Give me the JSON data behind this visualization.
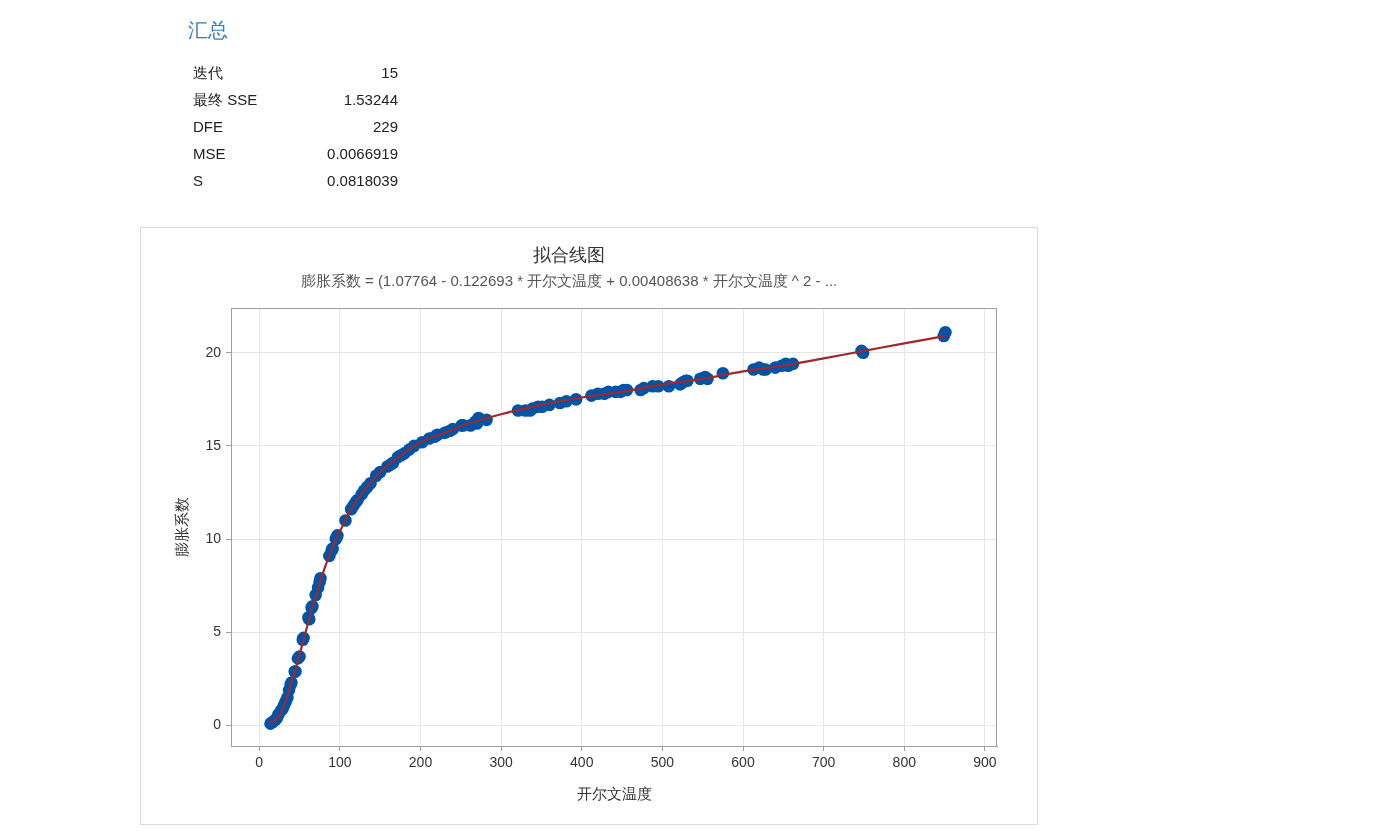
{
  "chart_data": [
    {
      "type": "other",
      "title": "汇总",
      "categories": [
        "迭代",
        "最终 SSE",
        "DFE",
        "MSE",
        "S"
      ],
      "values": [
        15,
        1.53244,
        229,
        0.0066919,
        0.0818039
      ],
      "data_labels": true
    },
    {
      "type": "scatter",
      "title": "拟合线图",
      "subtitle": "膨胀系数 = (1.07764 - 0.122693 * 开尔文温度 + 0.00408638 * 开尔文温度 ^ 2 - ...",
      "xlabel": "开尔文温度",
      "ylabel": "膨胀系数",
      "xlim": [
        -35,
        915
      ],
      "xticks": [
        0,
        100,
        200,
        300,
        400,
        500,
        600,
        700,
        800,
        900
      ],
      "ylim": [
        -1.1,
        22.4
      ],
      "yticks": [
        0,
        5,
        10,
        15,
        20
      ],
      "grid": true,
      "series": [
        {
          "type": "scatter",
          "color": "#0054a6",
          "marker": "circle",
          "x": [
            14,
            17,
            20,
            22,
            24,
            27,
            29,
            31,
            33,
            35,
            37,
            39,
            40,
            44,
            45,
            48,
            50,
            54,
            55,
            61,
            62,
            65,
            66,
            70,
            73,
            75,
            76,
            87,
            90,
            91,
            95,
            96,
            97,
            107,
            114,
            117,
            120,
            122,
            127,
            130,
            134,
            138,
            145,
            150,
            159,
            163,
            166,
            172,
            176,
            180,
            186,
            192,
            202,
            211,
            218,
            221,
            230,
            236,
            240,
            251,
            253,
            262,
            268,
            270,
            272,
            282,
            321,
            330,
            336,
            339,
            346,
            351,
            360,
            373,
            381,
            393,
            412,
            420,
            428,
            433,
            442,
            448,
            452,
            456,
            473,
            477,
            488,
            495,
            508,
            522,
            525,
            529,
            531,
            547,
            553,
            556,
            575,
            613,
            620,
            625,
            628,
            640,
            648,
            653,
            656,
            662,
            747,
            749,
            849,
            851
          ],
          "values": [
            0.1,
            0.2,
            0.3,
            0.4,
            0.6,
            0.8,
            0.9,
            1.1,
            1.3,
            1.5,
            1.9,
            2.2,
            2.3,
            2.9,
            2.9,
            3.6,
            3.7,
            4.6,
            4.7,
            5.8,
            5.7,
            6.3,
            6.4,
            7.0,
            7.4,
            7.7,
            7.9,
            9.1,
            9.4,
            9.5,
            10.0,
            10.1,
            10.2,
            11.0,
            11.6,
            11.8,
            12.0,
            12.1,
            12.4,
            12.6,
            12.8,
            13.0,
            13.4,
            13.6,
            13.9,
            14.0,
            14.1,
            14.4,
            14.5,
            14.6,
            14.8,
            15.0,
            15.2,
            15.4,
            15.5,
            15.6,
            15.7,
            15.8,
            15.9,
            16.1,
            16.1,
            16.1,
            16.3,
            16.2,
            16.5,
            16.4,
            16.9,
            16.9,
            16.9,
            17.0,
            17.1,
            17.1,
            17.2,
            17.3,
            17.4,
            17.5,
            17.7,
            17.8,
            17.8,
            17.9,
            17.9,
            17.9,
            18.0,
            18.0,
            18.0,
            18.1,
            18.2,
            18.2,
            18.2,
            18.3,
            18.4,
            18.5,
            18.5,
            18.6,
            18.7,
            18.6,
            18.9,
            19.1,
            19.2,
            19.1,
            19.1,
            19.2,
            19.3,
            19.4,
            19.3,
            19.4,
            20.1,
            20.0,
            20.9,
            21.1
          ]
        },
        {
          "type": "line",
          "color": "#a0282d",
          "marker": "none",
          "x": [
            14,
            20,
            25,
            30,
            35,
            40,
            45,
            50,
            55,
            60,
            65,
            70,
            75,
            80,
            85,
            90,
            95,
            100,
            110,
            120,
            130,
            140,
            150,
            170,
            200,
            230,
            260,
            300,
            350,
            400,
            450,
            500,
            550,
            600,
            650,
            700,
            750,
            800,
            851
          ],
          "values": [
            0.2,
            0.3,
            0.5,
            1.0,
            1.6,
            2.3,
            3.0,
            3.8,
            4.6,
            5.4,
            6.2,
            6.9,
            7.6,
            8.3,
            8.9,
            9.4,
            10.0,
            10.4,
            11.3,
            12.0,
            12.6,
            13.1,
            13.6,
            14.3,
            15.2,
            15.7,
            16.2,
            16.7,
            17.2,
            17.6,
            17.9,
            18.3,
            18.6,
            19.0,
            19.3,
            19.7,
            20.1,
            20.5,
            20.9
          ]
        }
      ]
    }
  ]
}
